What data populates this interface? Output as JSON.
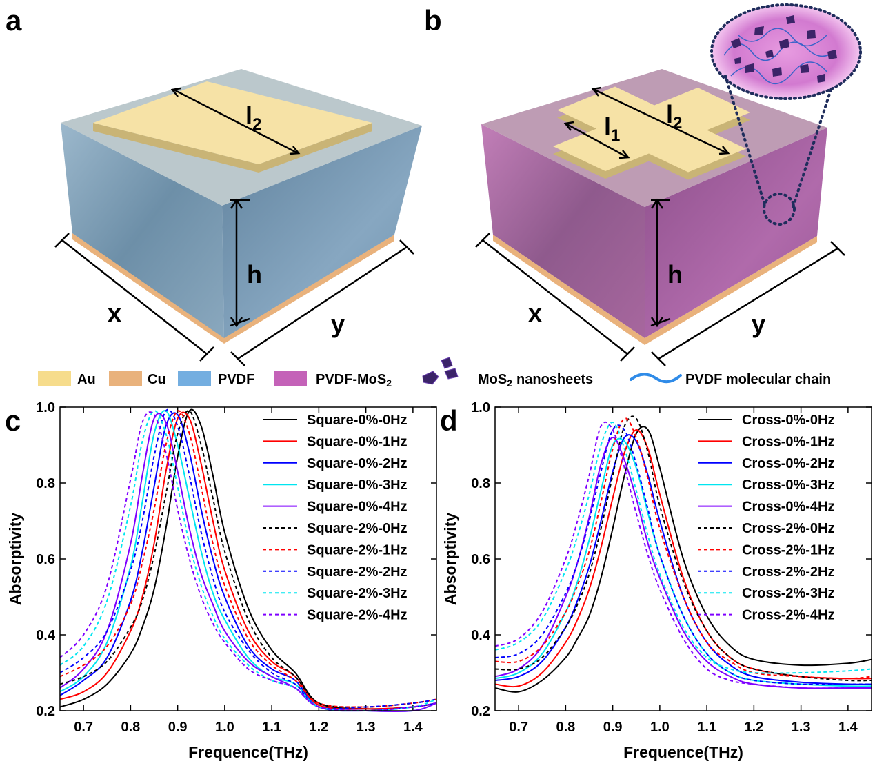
{
  "panels": {
    "a": {
      "label": "a",
      "dims": [
        {
          "text": "l",
          "sub": "2"
        },
        {
          "text": "h"
        },
        {
          "text": "x"
        },
        {
          "text": "y"
        }
      ]
    },
    "b": {
      "label": "b",
      "dims": [
        {
          "text": "l",
          "sub": "1"
        },
        {
          "text": "l",
          "sub": "2"
        },
        {
          "text": "h"
        },
        {
          "text": "x"
        },
        {
          "text": "y"
        }
      ]
    }
  },
  "materials_legend": [
    {
      "text": "Au",
      "color": "#f6dc8c"
    },
    {
      "text": "Cu",
      "color": "#e9b27c"
    },
    {
      "text": "PVDF",
      "color": "#74aee0"
    },
    {
      "text": "PVDF-MoS",
      "sub": "2",
      "color": "#c462b8"
    },
    {
      "text": "MoS",
      "sub": "2",
      "tail": "nanosheets"
    },
    {
      "text": "PVDF molecular chain"
    }
  ],
  "chart_data": [
    {
      "type": "line",
      "panel_label": "c",
      "x_label": "Frequence(THz)",
      "y_label": "Absorptivity",
      "xlim": [
        0.65,
        1.45
      ],
      "ylim": [
        0.2,
        1.0
      ],
      "xticks": [
        0.7,
        0.8,
        0.9,
        {
          "value": 1.0,
          "label": "1.0"
        },
        1.1,
        1.2,
        1.3,
        1.4
      ],
      "yticks": [
        0.2,
        0.4,
        0.6,
        0.8,
        {
          "value": 1.0,
          "label": "1.0"
        }
      ],
      "legend": "upper right",
      "x": [
        0.65,
        0.7,
        0.75,
        0.8,
        0.825,
        0.85,
        0.875,
        0.9,
        0.925,
        0.95,
        0.975,
        1.0,
        1.05,
        1.1,
        1.15,
        1.2,
        1.3,
        1.4,
        1.45
      ],
      "series": [
        {
          "name": "Square-0%-0Hz",
          "color": "#000000",
          "style": "solid",
          "values": [
            0.21,
            0.23,
            0.27,
            0.35,
            0.42,
            0.52,
            0.68,
            0.87,
            0.99,
            0.95,
            0.82,
            0.67,
            0.47,
            0.36,
            0.3,
            0.22,
            0.205,
            0.21,
            0.22
          ]
        },
        {
          "name": "Square-0%-1Hz",
          "color": "#ff0000",
          "style": "solid",
          "values": [
            0.23,
            0.25,
            0.3,
            0.41,
            0.5,
            0.64,
            0.83,
            0.97,
            0.97,
            0.85,
            0.7,
            0.57,
            0.41,
            0.33,
            0.29,
            0.215,
            0.205,
            0.21,
            0.22
          ]
        },
        {
          "name": "Square-0%-2Hz",
          "color": "#0000ff",
          "style": "solid",
          "values": [
            0.24,
            0.28,
            0.34,
            0.49,
            0.62,
            0.79,
            0.95,
            0.98,
            0.88,
            0.73,
            0.6,
            0.5,
            0.37,
            0.31,
            0.28,
            0.21,
            0.2,
            0.21,
            0.22
          ]
        },
        {
          "name": "Square-0%-3Hz",
          "color": "#00e5f0",
          "style": "solid",
          "values": [
            0.25,
            0.29,
            0.38,
            0.58,
            0.75,
            0.93,
            0.99,
            0.9,
            0.76,
            0.62,
            0.51,
            0.44,
            0.34,
            0.29,
            0.27,
            0.21,
            0.2,
            0.2,
            0.22
          ]
        },
        {
          "name": "Square-0%-4Hz",
          "color": "#7f00ff",
          "style": "solid",
          "values": [
            0.26,
            0.31,
            0.41,
            0.64,
            0.82,
            0.97,
            0.96,
            0.83,
            0.68,
            0.56,
            0.48,
            0.41,
            0.33,
            0.29,
            0.26,
            0.21,
            0.2,
            0.2,
            0.22
          ]
        },
        {
          "name": "Square-2%-0Hz",
          "color": "#000000",
          "style": "dashed",
          "values": [
            0.27,
            0.29,
            0.33,
            0.42,
            0.49,
            0.61,
            0.77,
            0.93,
            0.99,
            0.9,
            0.76,
            0.62,
            0.44,
            0.34,
            0.29,
            0.22,
            0.21,
            0.22,
            0.23
          ]
        },
        {
          "name": "Square-2%-1Hz",
          "color": "#ff0000",
          "style": "dashed",
          "values": [
            0.29,
            0.32,
            0.37,
            0.48,
            0.59,
            0.73,
            0.9,
            0.99,
            0.93,
            0.79,
            0.64,
            0.53,
            0.39,
            0.32,
            0.28,
            0.22,
            0.21,
            0.22,
            0.23
          ]
        },
        {
          "name": "Square-2%-2Hz",
          "color": "#0000ff",
          "style": "dashed",
          "values": [
            0.3,
            0.34,
            0.41,
            0.57,
            0.7,
            0.87,
            0.99,
            0.95,
            0.82,
            0.67,
            0.55,
            0.46,
            0.36,
            0.3,
            0.27,
            0.21,
            0.21,
            0.22,
            0.23
          ]
        },
        {
          "name": "Square-2%-3Hz",
          "color": "#00e5f0",
          "style": "dashed",
          "values": [
            0.32,
            0.37,
            0.49,
            0.74,
            0.91,
            0.99,
            0.93,
            0.79,
            0.64,
            0.53,
            0.45,
            0.39,
            0.32,
            0.28,
            0.26,
            0.21,
            0.2,
            0.21,
            0.23
          ]
        },
        {
          "name": "Square-2%-4Hz",
          "color": "#7f00ff",
          "style": "dashed",
          "values": [
            0.34,
            0.4,
            0.53,
            0.81,
            0.96,
            0.98,
            0.88,
            0.73,
            0.6,
            0.5,
            0.43,
            0.38,
            0.31,
            0.28,
            0.26,
            0.21,
            0.2,
            0.21,
            0.22
          ]
        }
      ]
    },
    {
      "type": "line",
      "panel_label": "d",
      "x_label": "Frequence(THz)",
      "y_label": "Absorptivity",
      "xlim": [
        0.65,
        1.45
      ],
      "ylim": [
        0.2,
        1.0
      ],
      "xticks": [
        0.7,
        0.8,
        0.9,
        {
          "value": 1.0,
          "label": "1.0"
        },
        1.1,
        1.2,
        1.3,
        1.4
      ],
      "yticks": [
        0.2,
        0.4,
        0.6,
        0.8,
        {
          "value": 1.0,
          "label": "1.0"
        }
      ],
      "legend": "upper right",
      "x": [
        0.65,
        0.7,
        0.75,
        0.8,
        0.825,
        0.85,
        0.875,
        0.9,
        0.925,
        0.95,
        0.975,
        1.0,
        1.05,
        1.1,
        1.15,
        1.2,
        1.3,
        1.4,
        1.45
      ],
      "series": [
        {
          "name": "Cross-0%-0Hz",
          "color": "#000000",
          "style": "solid",
          "values": [
            0.26,
            0.25,
            0.28,
            0.34,
            0.39,
            0.45,
            0.55,
            0.68,
            0.82,
            0.93,
            0.94,
            0.84,
            0.6,
            0.45,
            0.37,
            0.335,
            0.32,
            0.325,
            0.335
          ]
        },
        {
          "name": "Cross-0%-1Hz",
          "color": "#ff0000",
          "style": "solid",
          "values": [
            0.27,
            0.265,
            0.3,
            0.38,
            0.44,
            0.52,
            0.63,
            0.76,
            0.88,
            0.94,
            0.89,
            0.77,
            0.55,
            0.41,
            0.34,
            0.31,
            0.29,
            0.285,
            0.285
          ]
        },
        {
          "name": "Cross-0%-2Hz",
          "color": "#0000ff",
          "style": "solid",
          "values": [
            0.28,
            0.29,
            0.33,
            0.42,
            0.49,
            0.58,
            0.7,
            0.83,
            0.92,
            0.91,
            0.82,
            0.7,
            0.5,
            0.38,
            0.32,
            0.29,
            0.275,
            0.27,
            0.27
          ]
        },
        {
          "name": "Cross-0%-3Hz",
          "color": "#00e5f0",
          "style": "solid",
          "values": [
            0.285,
            0.3,
            0.35,
            0.46,
            0.54,
            0.65,
            0.78,
            0.9,
            0.91,
            0.84,
            0.72,
            0.61,
            0.45,
            0.35,
            0.3,
            0.28,
            0.27,
            0.265,
            0.265
          ]
        },
        {
          "name": "Cross-0%-4Hz",
          "color": "#7f00ff",
          "style": "solid",
          "values": [
            0.29,
            0.31,
            0.37,
            0.5,
            0.59,
            0.71,
            0.85,
            0.92,
            0.86,
            0.76,
            0.64,
            0.55,
            0.41,
            0.33,
            0.29,
            0.27,
            0.26,
            0.26,
            0.26
          ]
        },
        {
          "name": "Cross-2%-0Hz",
          "color": "#000000",
          "style": "dashed",
          "values": [
            0.31,
            0.31,
            0.34,
            0.42,
            0.48,
            0.56,
            0.68,
            0.82,
            0.95,
            0.97,
            0.88,
            0.74,
            0.54,
            0.41,
            0.34,
            0.31,
            0.29,
            0.28,
            0.28
          ]
        },
        {
          "name": "Cross-2%-1Hz",
          "color": "#ff0000",
          "style": "dashed",
          "values": [
            0.33,
            0.33,
            0.37,
            0.46,
            0.53,
            0.62,
            0.75,
            0.89,
            0.97,
            0.92,
            0.81,
            0.68,
            0.5,
            0.38,
            0.33,
            0.3,
            0.29,
            0.285,
            0.29
          ]
        },
        {
          "name": "Cross-2%-2Hz",
          "color": "#0000ff",
          "style": "dashed",
          "values": [
            0.34,
            0.35,
            0.4,
            0.51,
            0.59,
            0.7,
            0.83,
            0.94,
            0.94,
            0.85,
            0.73,
            0.61,
            0.45,
            0.35,
            0.3,
            0.28,
            0.27,
            0.27,
            0.27
          ]
        },
        {
          "name": "Cross-2%-3Hz",
          "color": "#00e5f0",
          "style": "dashed",
          "values": [
            0.36,
            0.38,
            0.44,
            0.57,
            0.66,
            0.77,
            0.9,
            0.96,
            0.89,
            0.78,
            0.66,
            0.56,
            0.42,
            0.34,
            0.31,
            0.3,
            0.3,
            0.305,
            0.31
          ]
        },
        {
          "name": "Cross-2%-4Hz",
          "color": "#7f00ff",
          "style": "dashed",
          "values": [
            0.37,
            0.39,
            0.46,
            0.6,
            0.7,
            0.82,
            0.95,
            0.94,
            0.84,
            0.72,
            0.61,
            0.52,
            0.39,
            0.31,
            0.28,
            0.27,
            0.26,
            0.26,
            0.26
          ]
        }
      ]
    }
  ]
}
